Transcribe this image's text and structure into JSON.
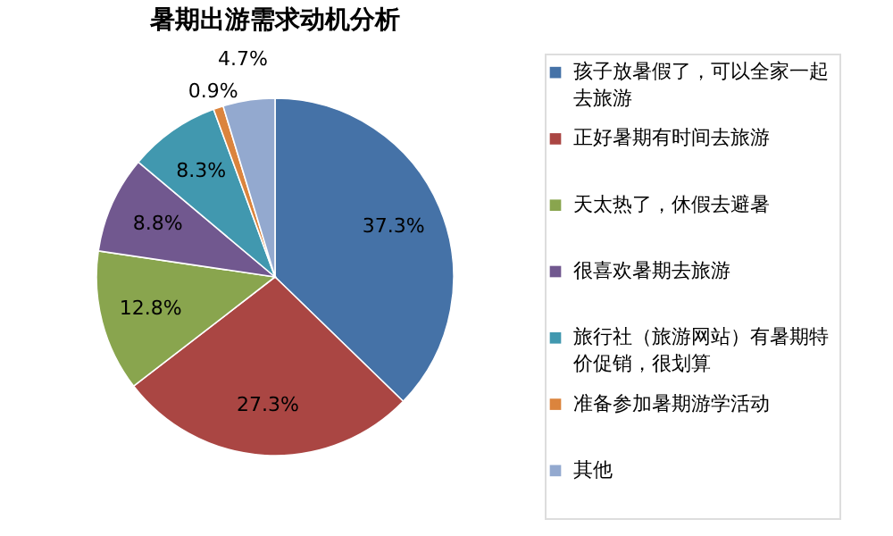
{
  "chart_data": {
    "type": "pie",
    "title": "暑期出游需求动机分析",
    "categories": [
      "孩子放暑假了，可以全家一起去旅游",
      "正好暑期有时间去旅游",
      "天太热了，休假去避暑",
      "很喜欢暑期去旅游",
      "旅行社（旅游网站）有暑期特价促销，很划算",
      "准备参加暑期游学活动",
      "其他"
    ],
    "values": [
      37.3,
      27.3,
      12.8,
      8.8,
      8.3,
      0.9,
      4.7
    ],
    "value_labels": [
      "37.3%",
      "27.3%",
      "12.8%",
      "8.8%",
      "8.3%",
      "0.9%",
      "4.7%"
    ],
    "colors": [
      "#4572a7",
      "#aa4643",
      "#89a54e",
      "#71588f",
      "#4198af",
      "#db843d",
      "#93a9cf"
    ],
    "legend": "right"
  }
}
